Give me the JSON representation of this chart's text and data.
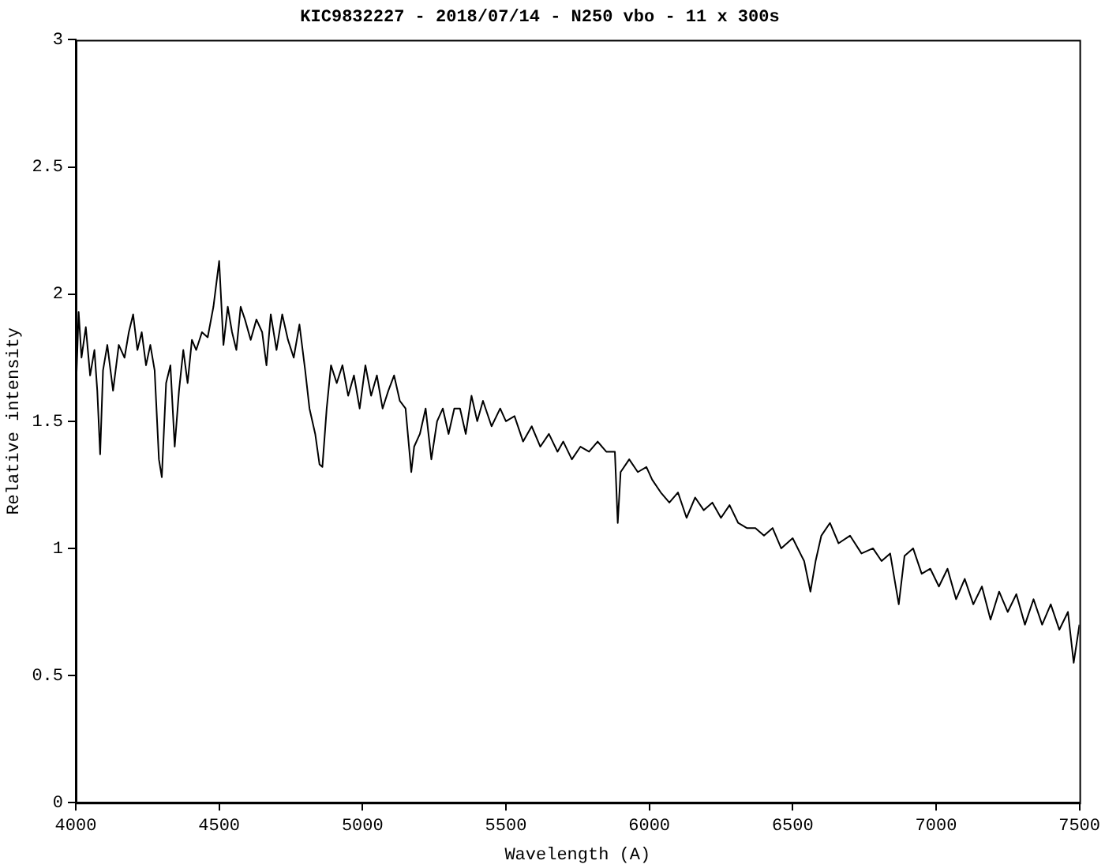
{
  "chart_data": {
    "type": "line",
    "title": "KIC9832227 - 2018/07/14 - N250 vbo - 11 x 300s",
    "xlabel": "Wavelength (A)",
    "ylabel": "Relative intensity",
    "x": [
      4000,
      4010,
      4020,
      4035,
      4050,
      4065,
      4075,
      4085,
      4095,
      4110,
      4130,
      4150,
      4170,
      4185,
      4200,
      4215,
      4230,
      4245,
      4260,
      4275,
      4290,
      4300,
      4315,
      4330,
      4345,
      4360,
      4375,
      4390,
      4405,
      4420,
      4440,
      4460,
      4480,
      4500,
      4515,
      4530,
      4545,
      4560,
      4575,
      4590,
      4610,
      4630,
      4650,
      4665,
      4680,
      4700,
      4720,
      4740,
      4760,
      4780,
      4800,
      4815,
      4835,
      4850,
      4860,
      4875,
      4890,
      4910,
      4930,
      4950,
      4970,
      4990,
      5010,
      5030,
      5050,
      5070,
      5090,
      5110,
      5130,
      5150,
      5170,
      5180,
      5200,
      5220,
      5240,
      5260,
      5280,
      5300,
      5320,
      5340,
      5360,
      5380,
      5400,
      5420,
      5450,
      5480,
      5500,
      5530,
      5560,
      5590,
      5620,
      5650,
      5680,
      5700,
      5730,
      5760,
      5790,
      5820,
      5850,
      5880,
      5890,
      5900,
      5930,
      5960,
      5990,
      6010,
      6040,
      6070,
      6100,
      6130,
      6160,
      6190,
      6220,
      6250,
      6280,
      6310,
      6340,
      6370,
      6400,
      6430,
      6460,
      6500,
      6540,
      6562,
      6580,
      6600,
      6630,
      6660,
      6700,
      6740,
      6780,
      6810,
      6840,
      6870,
      6890,
      6920,
      6950,
      6980,
      7010,
      7040,
      7070,
      7100,
      7130,
      7160,
      7190,
      7220,
      7250,
      7280,
      7310,
      7340,
      7370,
      7400,
      7430,
      7460,
      7480,
      7500
    ],
    "series": [
      {
        "color": "#000000",
        "values": [
          1.6,
          1.93,
          1.75,
          1.87,
          1.68,
          1.78,
          1.62,
          1.37,
          1.7,
          1.8,
          1.62,
          1.8,
          1.75,
          1.85,
          1.92,
          1.78,
          1.85,
          1.72,
          1.8,
          1.7,
          1.35,
          1.28,
          1.65,
          1.72,
          1.4,
          1.62,
          1.78,
          1.65,
          1.82,
          1.78,
          1.85,
          1.83,
          1.95,
          2.13,
          1.8,
          1.95,
          1.85,
          1.78,
          1.95,
          1.9,
          1.82,
          1.9,
          1.85,
          1.72,
          1.92,
          1.78,
          1.92,
          1.82,
          1.75,
          1.88,
          1.7,
          1.55,
          1.45,
          1.33,
          1.32,
          1.55,
          1.72,
          1.65,
          1.72,
          1.6,
          1.68,
          1.55,
          1.72,
          1.6,
          1.68,
          1.55,
          1.62,
          1.68,
          1.58,
          1.55,
          1.3,
          1.4,
          1.45,
          1.55,
          1.35,
          1.5,
          1.55,
          1.45,
          1.55,
          1.55,
          1.45,
          1.6,
          1.5,
          1.58,
          1.48,
          1.55,
          1.5,
          1.52,
          1.42,
          1.48,
          1.4,
          1.45,
          1.38,
          1.42,
          1.35,
          1.4,
          1.38,
          1.42,
          1.38,
          1.38,
          1.1,
          1.3,
          1.35,
          1.3,
          1.32,
          1.27,
          1.22,
          1.18,
          1.22,
          1.12,
          1.2,
          1.15,
          1.18,
          1.12,
          1.17,
          1.1,
          1.08,
          1.08,
          1.05,
          1.08,
          1.0,
          1.04,
          0.95,
          0.83,
          0.95,
          1.05,
          1.1,
          1.02,
          1.05,
          0.98,
          1.0,
          0.95,
          0.98,
          0.78,
          0.97,
          1.0,
          0.9,
          0.92,
          0.85,
          0.92,
          0.8,
          0.88,
          0.78,
          0.85,
          0.72,
          0.83,
          0.75,
          0.82,
          0.7,
          0.8,
          0.7,
          0.78,
          0.68,
          0.75,
          0.55,
          0.7
        ]
      }
    ],
    "xlim": [
      4000,
      7500
    ],
    "xticks": [
      4000,
      4500,
      5000,
      5500,
      6000,
      6500,
      7000,
      7500
    ],
    "ylim": [
      0,
      3
    ],
    "yticks": [
      0,
      0.5,
      1,
      1.5,
      2,
      2.5,
      3
    ],
    "grid": false,
    "legend": false,
    "marker": "none",
    "line_style": "solid"
  }
}
